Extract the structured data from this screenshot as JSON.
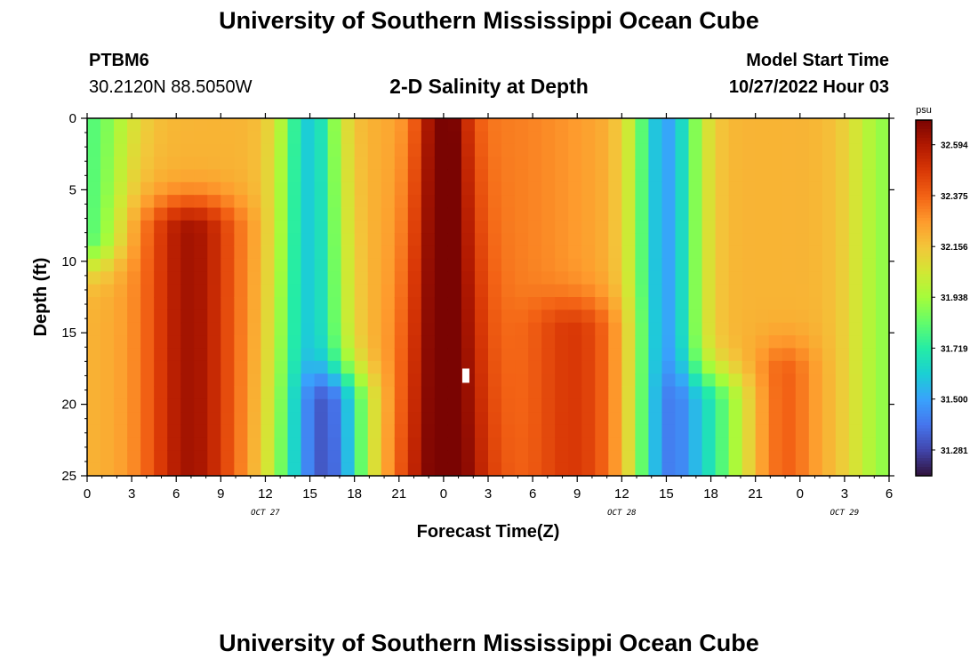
{
  "header": {
    "title": "University of Southern Mississippi Ocean Cube",
    "station": "PTBM6",
    "coords": "30.2120N  88.5050W",
    "subtitle": "2-D Salinity at Depth",
    "model_start_label": "Model Start Time",
    "model_start_value": "10/27/2022 Hour 03"
  },
  "footer": {
    "title": "University of Southern Mississippi Ocean Cube"
  },
  "chart_data": {
    "type": "heatmap",
    "title": "2-D Salinity at Depth",
    "xlabel": "Forecast Time(Z)",
    "ylabel": "Depth (ft)",
    "x_range_hours": [
      0,
      54
    ],
    "ylim": [
      0,
      25
    ],
    "x_ticks": [
      "0",
      "3",
      "6",
      "9",
      "12",
      "15",
      "18",
      "21",
      "0",
      "3",
      "6",
      "9",
      "12",
      "15",
      "18",
      "21",
      "0",
      "3",
      "6"
    ],
    "y_ticks": [
      "0",
      "5",
      "10",
      "15",
      "20",
      "25"
    ],
    "date_labels": [
      {
        "text": "OCT 27",
        "hour": 12
      },
      {
        "text": "OCT 28",
        "hour": 36
      },
      {
        "text": "OCT 29",
        "hour": 51
      }
    ],
    "colorbar": {
      "unit": "psu",
      "ticks": [
        "32.594",
        "32.375",
        "32.156",
        "31.938",
        "31.719",
        "31.500",
        "31.281"
      ],
      "range": [
        31.17,
        32.7
      ],
      "colors": [
        "#30123b",
        "#4145ab",
        "#4675ed",
        "#39a2fc",
        "#1bcfd4",
        "#24eca6",
        "#61fc6c",
        "#a4fc3b",
        "#d1e834",
        "#f3c63a",
        "#fe9b2d",
        "#f36315",
        "#d93806",
        "#b11901",
        "#7a0402"
      ]
    },
    "field_model": {
      "base": 32.2,
      "features": [
        {
          "kind": "low",
          "hour": 15,
          "depth_from": 0,
          "depth_to": 25,
          "amp": 0.6,
          "width_top": 2.0,
          "width_bottom": 2.6
        },
        {
          "kind": "low",
          "hour": 17,
          "depth_from": 20,
          "depth_to": 25,
          "amp": 0.45,
          "width_top": 2.2,
          "width_bottom": 2.2
        },
        {
          "kind": "low",
          "hour": 39,
          "depth_from": 0,
          "depth_to": 25,
          "amp": 0.7,
          "width_top": 2.2,
          "width_bottom": 2.2
        },
        {
          "kind": "low",
          "hour": 42,
          "depth_from": 20,
          "depth_to": 25,
          "amp": 0.4,
          "width_top": 2.4,
          "width_bottom": 2.4
        },
        {
          "kind": "low",
          "hour": 0,
          "depth_from": 0,
          "depth_to": 8,
          "amp": 0.4,
          "width_top": 3.0,
          "width_bottom": 1.0
        },
        {
          "kind": "low",
          "hour": 54,
          "depth_from": 0,
          "depth_to": 25,
          "amp": 0.3,
          "width_top": 2.6,
          "width_bottom": 2.6
        },
        {
          "kind": "high",
          "hour": 7,
          "depth_from": 8,
          "depth_to": 25,
          "amp": 0.42,
          "width_top": 3.2,
          "width_bottom": 3.2
        },
        {
          "kind": "high",
          "hour": 24,
          "depth_from": 0,
          "depth_to": 25,
          "amp": 0.48,
          "width_top": 1.8,
          "width_bottom": 3.0
        },
        {
          "kind": "high",
          "hour": 33,
          "depth_from": 15,
          "depth_to": 25,
          "amp": 0.22,
          "width_top": 3.0,
          "width_bottom": 3.0
        },
        {
          "kind": "high",
          "hour": 28,
          "depth_from": 0,
          "depth_to": 25,
          "amp": 0.12,
          "width_top": 6.0,
          "width_bottom": 6.0
        },
        {
          "kind": "high",
          "hour": 47,
          "depth_from": 18,
          "depth_to": 25,
          "amp": 0.18,
          "width_top": 2.0,
          "width_bottom": 2.0
        }
      ],
      "marker": {
        "hour": 25.5,
        "depth": 18
      }
    }
  }
}
